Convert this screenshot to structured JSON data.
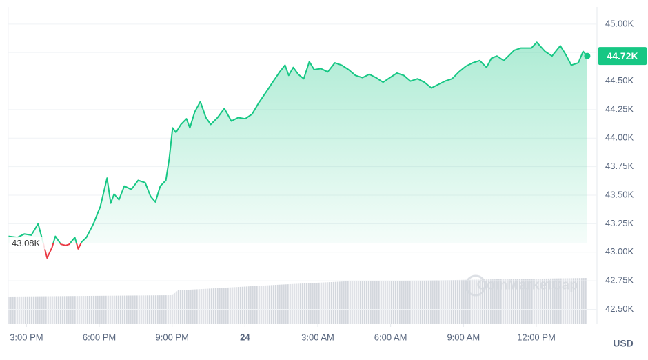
{
  "chart_data": {
    "type": "line",
    "x": [
      14.26,
      14.63,
      14.91,
      15.2,
      15.48,
      15.63,
      15.85,
      16.05,
      16.19,
      16.42,
      16.62,
      16.76,
      16.99,
      17.13,
      17.27,
      17.47,
      17.76,
      18.04,
      18.32,
      18.47,
      18.61,
      18.81,
      19.03,
      19.32,
      19.6,
      19.89,
      20.11,
      20.31,
      20.51,
      20.74,
      20.88,
      21.02,
      21.16,
      21.36,
      21.59,
      21.73,
      21.93,
      22.16,
      22.39,
      22.59,
      22.87,
      23.15,
      23.44,
      23.72,
      24.01,
      24.29,
      24.57,
      24.86,
      25.14,
      25.43,
      25.65,
      25.8,
      25.99,
      26.19,
      26.42,
      26.65,
      26.85,
      27.13,
      27.41,
      27.7,
      27.98,
      28.27,
      28.55,
      28.84,
      29.12,
      29.4,
      29.69,
      29.97,
      30.26,
      30.54,
      30.82,
      31.11,
      31.39,
      31.68,
      31.96,
      32.24,
      32.53,
      32.81,
      33.1,
      33.38,
      33.67,
      33.95,
      34.15,
      34.38,
      34.66,
      35.09,
      35.37,
      35.8,
      36.02,
      36.36,
      36.65,
      36.99,
      37.22,
      37.44,
      37.73,
      37.93,
      38.1
    ],
    "series": [
      {
        "color": "#16c784",
        "values": [
          43.14,
          43.13,
          43.16,
          43.15,
          43.25,
          43.13,
          42.95,
          43.04,
          43.14,
          43.07,
          43.06,
          43.07,
          43.13,
          43.03,
          43.09,
          43.13,
          43.25,
          43.4,
          43.65,
          43.43,
          43.51,
          43.46,
          43.58,
          43.55,
          43.63,
          43.61,
          43.49,
          43.44,
          43.58,
          43.63,
          43.82,
          44.09,
          44.05,
          44.12,
          44.17,
          44.09,
          44.23,
          44.32,
          44.18,
          44.12,
          44.18,
          44.26,
          44.15,
          44.18,
          44.17,
          44.21,
          44.31,
          44.4,
          44.49,
          44.58,
          44.64,
          44.55,
          44.62,
          44.56,
          44.52,
          44.67,
          44.6,
          44.61,
          44.58,
          44.66,
          44.64,
          44.6,
          44.55,
          44.53,
          44.56,
          44.53,
          44.49,
          44.53,
          44.57,
          44.55,
          44.5,
          44.52,
          44.49,
          44.44,
          44.47,
          44.5,
          44.52,
          44.58,
          44.63,
          44.66,
          44.68,
          44.62,
          44.7,
          44.72,
          44.68,
          44.77,
          44.79,
          44.79,
          44.84,
          44.76,
          44.72,
          44.81,
          44.73,
          44.64,
          44.66,
          44.76,
          44.72
        ]
      }
    ],
    "down_color": "#ea3943",
    "baseline": {
      "value": 43.08,
      "label": "43.08K"
    },
    "last_label": "44.72K",
    "currency": "USD",
    "watermark": "CoinMarketCap",
    "xlim": [
      14.25,
      38.5
    ],
    "ylim": [
      42.37,
      45.15
    ],
    "xticks": [
      {
        "value": 15,
        "label": "3:00 PM"
      },
      {
        "value": 18,
        "label": "6:00 PM"
      },
      {
        "value": 21,
        "label": "9:00 PM"
      },
      24,
      {
        "value": 27,
        "label": "3:00 AM"
      },
      {
        "value": 30,
        "label": "6:00 AM"
      },
      {
        "value": 33,
        "label": "9:00 AM"
      },
      {
        "value": 36,
        "label": "12:00 PM"
      }
    ],
    "xtick_24_label": null,
    "yticks": [
      {
        "value": 45,
        "label": "45.00K"
      },
      {
        "value": 44.75,
        "label": "44.75K"
      },
      {
        "value": 44.5,
        "label": "44.50K"
      },
      {
        "value": 44.25,
        "label": "44.25K"
      },
      {
        "value": 44,
        "label": "44.00K"
      },
      {
        "value": 43.75,
        "label": "43.75K"
      },
      {
        "value": 43.5,
        "label": "43.50K"
      },
      {
        "value": 43.25,
        "label": "43.25K"
      },
      {
        "value": 43,
        "label": "43.00K"
      },
      {
        "value": 42.75,
        "label": "42.75K"
      },
      {
        "value": 42.5,
        "label": "42.50K"
      }
    ],
    "grid": true
  }
}
